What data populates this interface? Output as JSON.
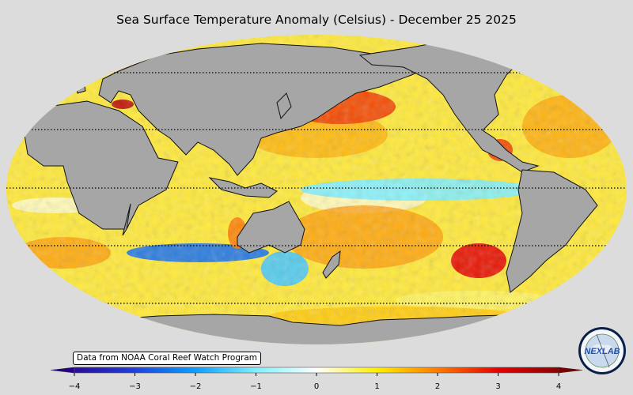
{
  "title": "Sea Surface Temperature Anomaly (Celsius) - December 25 2025",
  "credit": "Data from NOAA Coral Reef Watch Program",
  "logo": {
    "text": "NEXLAB",
    "icon": "nexlab-globe-logo"
  },
  "colorbar": {
    "min": -4,
    "max": 4,
    "extend": "both",
    "ticks": [
      "−4",
      "−3",
      "−2",
      "−1",
      "0",
      "1",
      "2",
      "3",
      "4"
    ],
    "tick_values": [
      -4,
      -3,
      -2,
      -1,
      0,
      1,
      2,
      3,
      4
    ],
    "colors": [
      {
        "v": -4,
        "c": "#2a0a9a"
      },
      {
        "v": -3,
        "c": "#1f3fe0"
      },
      {
        "v": -2,
        "c": "#0aa0ff"
      },
      {
        "v": -1,
        "c": "#7ff0ff"
      },
      {
        "v": 0,
        "c": "#ffffff"
      },
      {
        "v": 1,
        "c": "#ffee00"
      },
      {
        "v": 2,
        "c": "#ff7a00"
      },
      {
        "v": 3,
        "c": "#e60000"
      },
      {
        "v": 4,
        "c": "#8a0000"
      }
    ],
    "under_color": "#26008a",
    "over_color": "#7a0000"
  },
  "chart_data": {
    "type": "heatmap",
    "title": "Sea Surface Temperature Anomaly (Celsius) - December 25 2025",
    "variable": "SST anomaly",
    "units": "Celsius",
    "projection": "Robinson",
    "value_range": [
      -4,
      4
    ],
    "latitude_gridlines": [
      60,
      30,
      0,
      -30,
      -60
    ],
    "land_color": "#a6a6a6",
    "regions": [
      {
        "name": "Equatorial central-east Pacific",
        "anomaly_approx": -1.0
      },
      {
        "name": "North Pacific (Kuroshio extension)",
        "anomaly_approx": 2.5
      },
      {
        "name": "Black Sea",
        "anomaly_approx": 3.5
      },
      {
        "name": "Mediterranean",
        "anomaly_approx": 2.0
      },
      {
        "name": "Southeast Pacific off Chile",
        "anomaly_approx": 3.0
      },
      {
        "name": "Gulf of Mexico",
        "anomaly_approx": 2.5
      },
      {
        "name": "Southern Indian Ocean (Agulhas)",
        "anomaly_approx": -2.5
      },
      {
        "name": "Tasman Sea / S of Australia",
        "anomaly_approx": -1.5
      },
      {
        "name": "Norwegian / Barents Sea",
        "anomaly_approx": 2.0
      },
      {
        "name": "Western Australia coast",
        "anomaly_approx": 2.0
      }
    ]
  }
}
